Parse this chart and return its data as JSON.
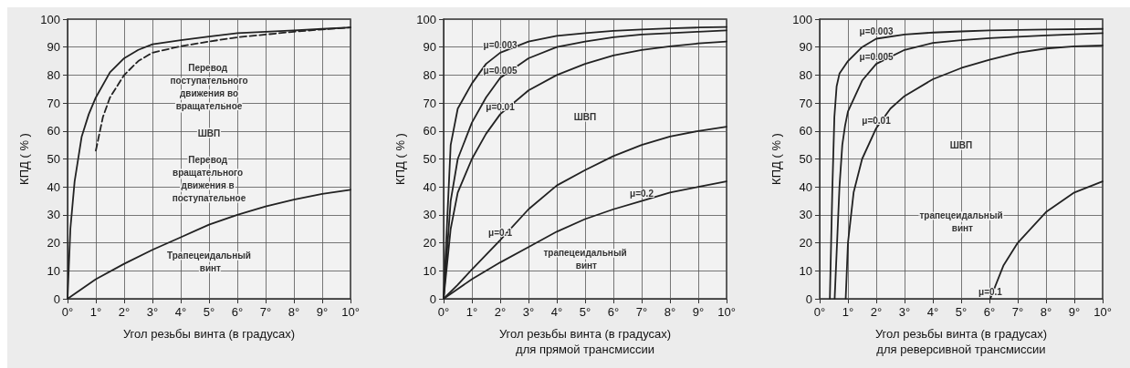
{
  "chart_data": [
    {
      "type": "line",
      "xlabel": "Угол резьбы винта (в градусах)",
      "ylabel": "КПД ( % )",
      "xlim": [
        0,
        10
      ],
      "xticks": [
        {
          "value": 0,
          "label": "0°"
        },
        {
          "value": 1,
          "label": "1°"
        },
        {
          "value": 2,
          "label": "2°"
        },
        {
          "value": 3,
          "label": "3°"
        },
        {
          "value": 4,
          "label": "4°"
        },
        {
          "value": 5,
          "label": "5°"
        },
        {
          "value": 6,
          "label": "6°"
        },
        {
          "value": 7,
          "label": "7°"
        },
        {
          "value": 8,
          "label": "8°"
        },
        {
          "value": 9,
          "label": "9°"
        },
        {
          "value": 10,
          "label": "10°"
        }
      ],
      "ylim": [
        0,
        100
      ],
      "yticks": [
        0,
        10,
        20,
        30,
        40,
        50,
        60,
        70,
        80,
        90,
        100
      ],
      "grid": true,
      "marker": "none",
      "series": [
        {
          "color": "#222222",
          "line_style": "solid",
          "x": [
            0,
            0.1,
            0.25,
            0.5,
            0.75,
            1,
            1.5,
            2,
            2.5,
            3,
            4,
            5,
            6,
            7,
            8,
            9,
            10
          ],
          "values": [
            0,
            25,
            42,
            58,
            66,
            72,
            81,
            86,
            89,
            91,
            92.5,
            93.8,
            95,
            95.5,
            96,
            96.5,
            97
          ]
        },
        {
          "color": "#222222",
          "line_style": "dashed",
          "x": [
            1,
            1.25,
            1.5,
            2,
            2.5,
            3,
            4,
            5,
            6,
            7,
            8,
            9,
            10
          ],
          "values": [
            53,
            65,
            72,
            80,
            85,
            88,
            90.3,
            92,
            93.5,
            94.5,
            95.5,
            96.3,
            97
          ]
        },
        {
          "color": "#222222",
          "line_style": "solid",
          "x": [
            0,
            1,
            2,
            3,
            4,
            5,
            6,
            7,
            8,
            9,
            10
          ],
          "values": [
            0,
            7,
            12.5,
            17.5,
            22,
            26.5,
            30,
            33,
            35.5,
            37.5,
            39
          ]
        }
      ],
      "annotations": [
        "Перевод поступательного движения во вращательное",
        "ШВП",
        "Перевод вращательного движения в поступательное",
        "Трапецеидальный винт"
      ]
    },
    {
      "type": "line",
      "xlabel": "Угол резьбы винта (в градусах)\nдля прямой трансмиссии",
      "ylabel": "КПД ( % )",
      "xlim": [
        0,
        10
      ],
      "xticks": [
        {
          "value": 0,
          "label": "0°"
        },
        {
          "value": 1,
          "label": "1°"
        },
        {
          "value": 2,
          "label": "2°"
        },
        {
          "value": 3,
          "label": "3°"
        },
        {
          "value": 4,
          "label": "4°"
        },
        {
          "value": 5,
          "label": "5°"
        },
        {
          "value": 6,
          "label": "6°"
        },
        {
          "value": 7,
          "label": "7°"
        },
        {
          "value": 8,
          "label": "8°"
        },
        {
          "value": 9,
          "label": "9°"
        },
        {
          "value": 10,
          "label": "10°"
        }
      ],
      "ylim": [
        0,
        100
      ],
      "yticks": [
        0,
        10,
        20,
        30,
        40,
        50,
        60,
        70,
        80,
        90,
        100
      ],
      "grid": true,
      "marker": "none",
      "series": [
        {
          "name": "μ=0.003",
          "color": "#222222",
          "line_style": "solid",
          "x": [
            0,
            0.25,
            0.5,
            1,
            1.5,
            2,
            3,
            4,
            5,
            6,
            7,
            8,
            9,
            10
          ],
          "values": [
            0,
            55,
            68,
            77,
            84,
            88,
            92,
            94,
            95,
            95.8,
            96.3,
            96.7,
            97,
            97.2
          ]
        },
        {
          "name": "μ=0.005",
          "color": "#222222",
          "line_style": "solid",
          "x": [
            0,
            0.25,
            0.5,
            1,
            1.5,
            2,
            3,
            4,
            5,
            6,
            7,
            8,
            9,
            10
          ],
          "values": [
            0,
            35,
            50,
            63,
            72,
            79,
            86,
            90,
            92,
            93.5,
            94.5,
            95,
            95.5,
            96
          ]
        },
        {
          "name": "μ=0.01",
          "color": "#222222",
          "line_style": "solid",
          "x": [
            0,
            0.25,
            0.5,
            1,
            1.5,
            2,
            3,
            4,
            5,
            6,
            7,
            8,
            9,
            10
          ],
          "values": [
            0,
            25,
            38,
            50,
            59,
            66,
            74.5,
            80,
            84,
            87,
            89,
            90.3,
            91.3,
            92
          ]
        },
        {
          "name": "μ=0.1",
          "color": "#222222",
          "line_style": "solid",
          "x": [
            0,
            0.5,
            1,
            2,
            3,
            4,
            5,
            6,
            7,
            8,
            9,
            10
          ],
          "values": [
            0,
            5,
            10.5,
            21,
            32,
            40.5,
            46,
            51,
            55,
            58,
            60,
            61.5
          ]
        },
        {
          "name": "μ=0.2",
          "color": "#222222",
          "line_style": "solid",
          "x": [
            0,
            1,
            2,
            3,
            4,
            5,
            6,
            7,
            8,
            9,
            10
          ],
          "values": [
            0,
            7,
            13,
            18.5,
            24,
            28.5,
            32,
            35,
            38,
            40,
            42
          ]
        }
      ],
      "annotations": [
        "ШВП",
        "трапецеидальный винт"
      ]
    },
    {
      "type": "line",
      "xlabel": "Угол резьбы винта (в градусах)\nдля реверсивной трансмиссии",
      "ylabel": "КПД ( % )",
      "xlim": [
        0,
        10
      ],
      "xticks": [
        {
          "value": 0,
          "label": "0°"
        },
        {
          "value": 1,
          "label": "1°"
        },
        {
          "value": 2,
          "label": "2°"
        },
        {
          "value": 3,
          "label": "3°"
        },
        {
          "value": 4,
          "label": "4°"
        },
        {
          "value": 5,
          "label": "5°"
        },
        {
          "value": 6,
          "label": "6°"
        },
        {
          "value": 7,
          "label": "7°"
        },
        {
          "value": 8,
          "label": "8°"
        },
        {
          "value": 9,
          "label": "9°"
        },
        {
          "value": 10,
          "label": "10°"
        }
      ],
      "ylim": [
        0,
        100
      ],
      "yticks": [
        0,
        10,
        20,
        30,
        40,
        50,
        60,
        70,
        80,
        90,
        100
      ],
      "grid": true,
      "marker": "none",
      "series": [
        {
          "name": "μ=0.003",
          "color": "#222222",
          "line_style": "solid",
          "x": [
            0.36,
            0.45,
            0.52,
            0.6,
            0.7,
            1,
            1.5,
            2,
            3,
            4,
            5,
            6,
            8,
            10
          ],
          "values": [
            0,
            40,
            65,
            76,
            80.5,
            85,
            90,
            93,
            94.5,
            95.2,
            95.6,
            96,
            96.3,
            96.5
          ]
        },
        {
          "name": "μ=0.005",
          "color": "#222222",
          "line_style": "solid",
          "x": [
            0.53,
            0.7,
            0.8,
            0.9,
            1,
            1.5,
            2,
            3,
            4,
            5,
            6,
            8,
            10
          ],
          "values": [
            0,
            40,
            55,
            62,
            67,
            78,
            84,
            89,
            91.5,
            92.5,
            93.2,
            94.2,
            95
          ]
        },
        {
          "name": "μ=0.01",
          "color": "#222222",
          "line_style": "solid",
          "x": [
            0.92,
            1,
            1.2,
            1.5,
            2,
            2.5,
            3,
            4,
            5,
            6,
            7,
            8,
            9,
            10
          ],
          "values": [
            0,
            20,
            38,
            50,
            61,
            68,
            72.5,
            78.5,
            82.5,
            85.5,
            88,
            89.5,
            90.3,
            90.6
          ]
        },
        {
          "name": "μ=0.1",
          "color": "#222222",
          "line_style": "solid",
          "x": [
            6.03,
            6.5,
            7,
            8,
            9,
            10
          ],
          "values": [
            0,
            12,
            20,
            31,
            38,
            42
          ]
        }
      ],
      "annotations": [
        "ШВП",
        "трапецеидальный винт"
      ]
    }
  ]
}
